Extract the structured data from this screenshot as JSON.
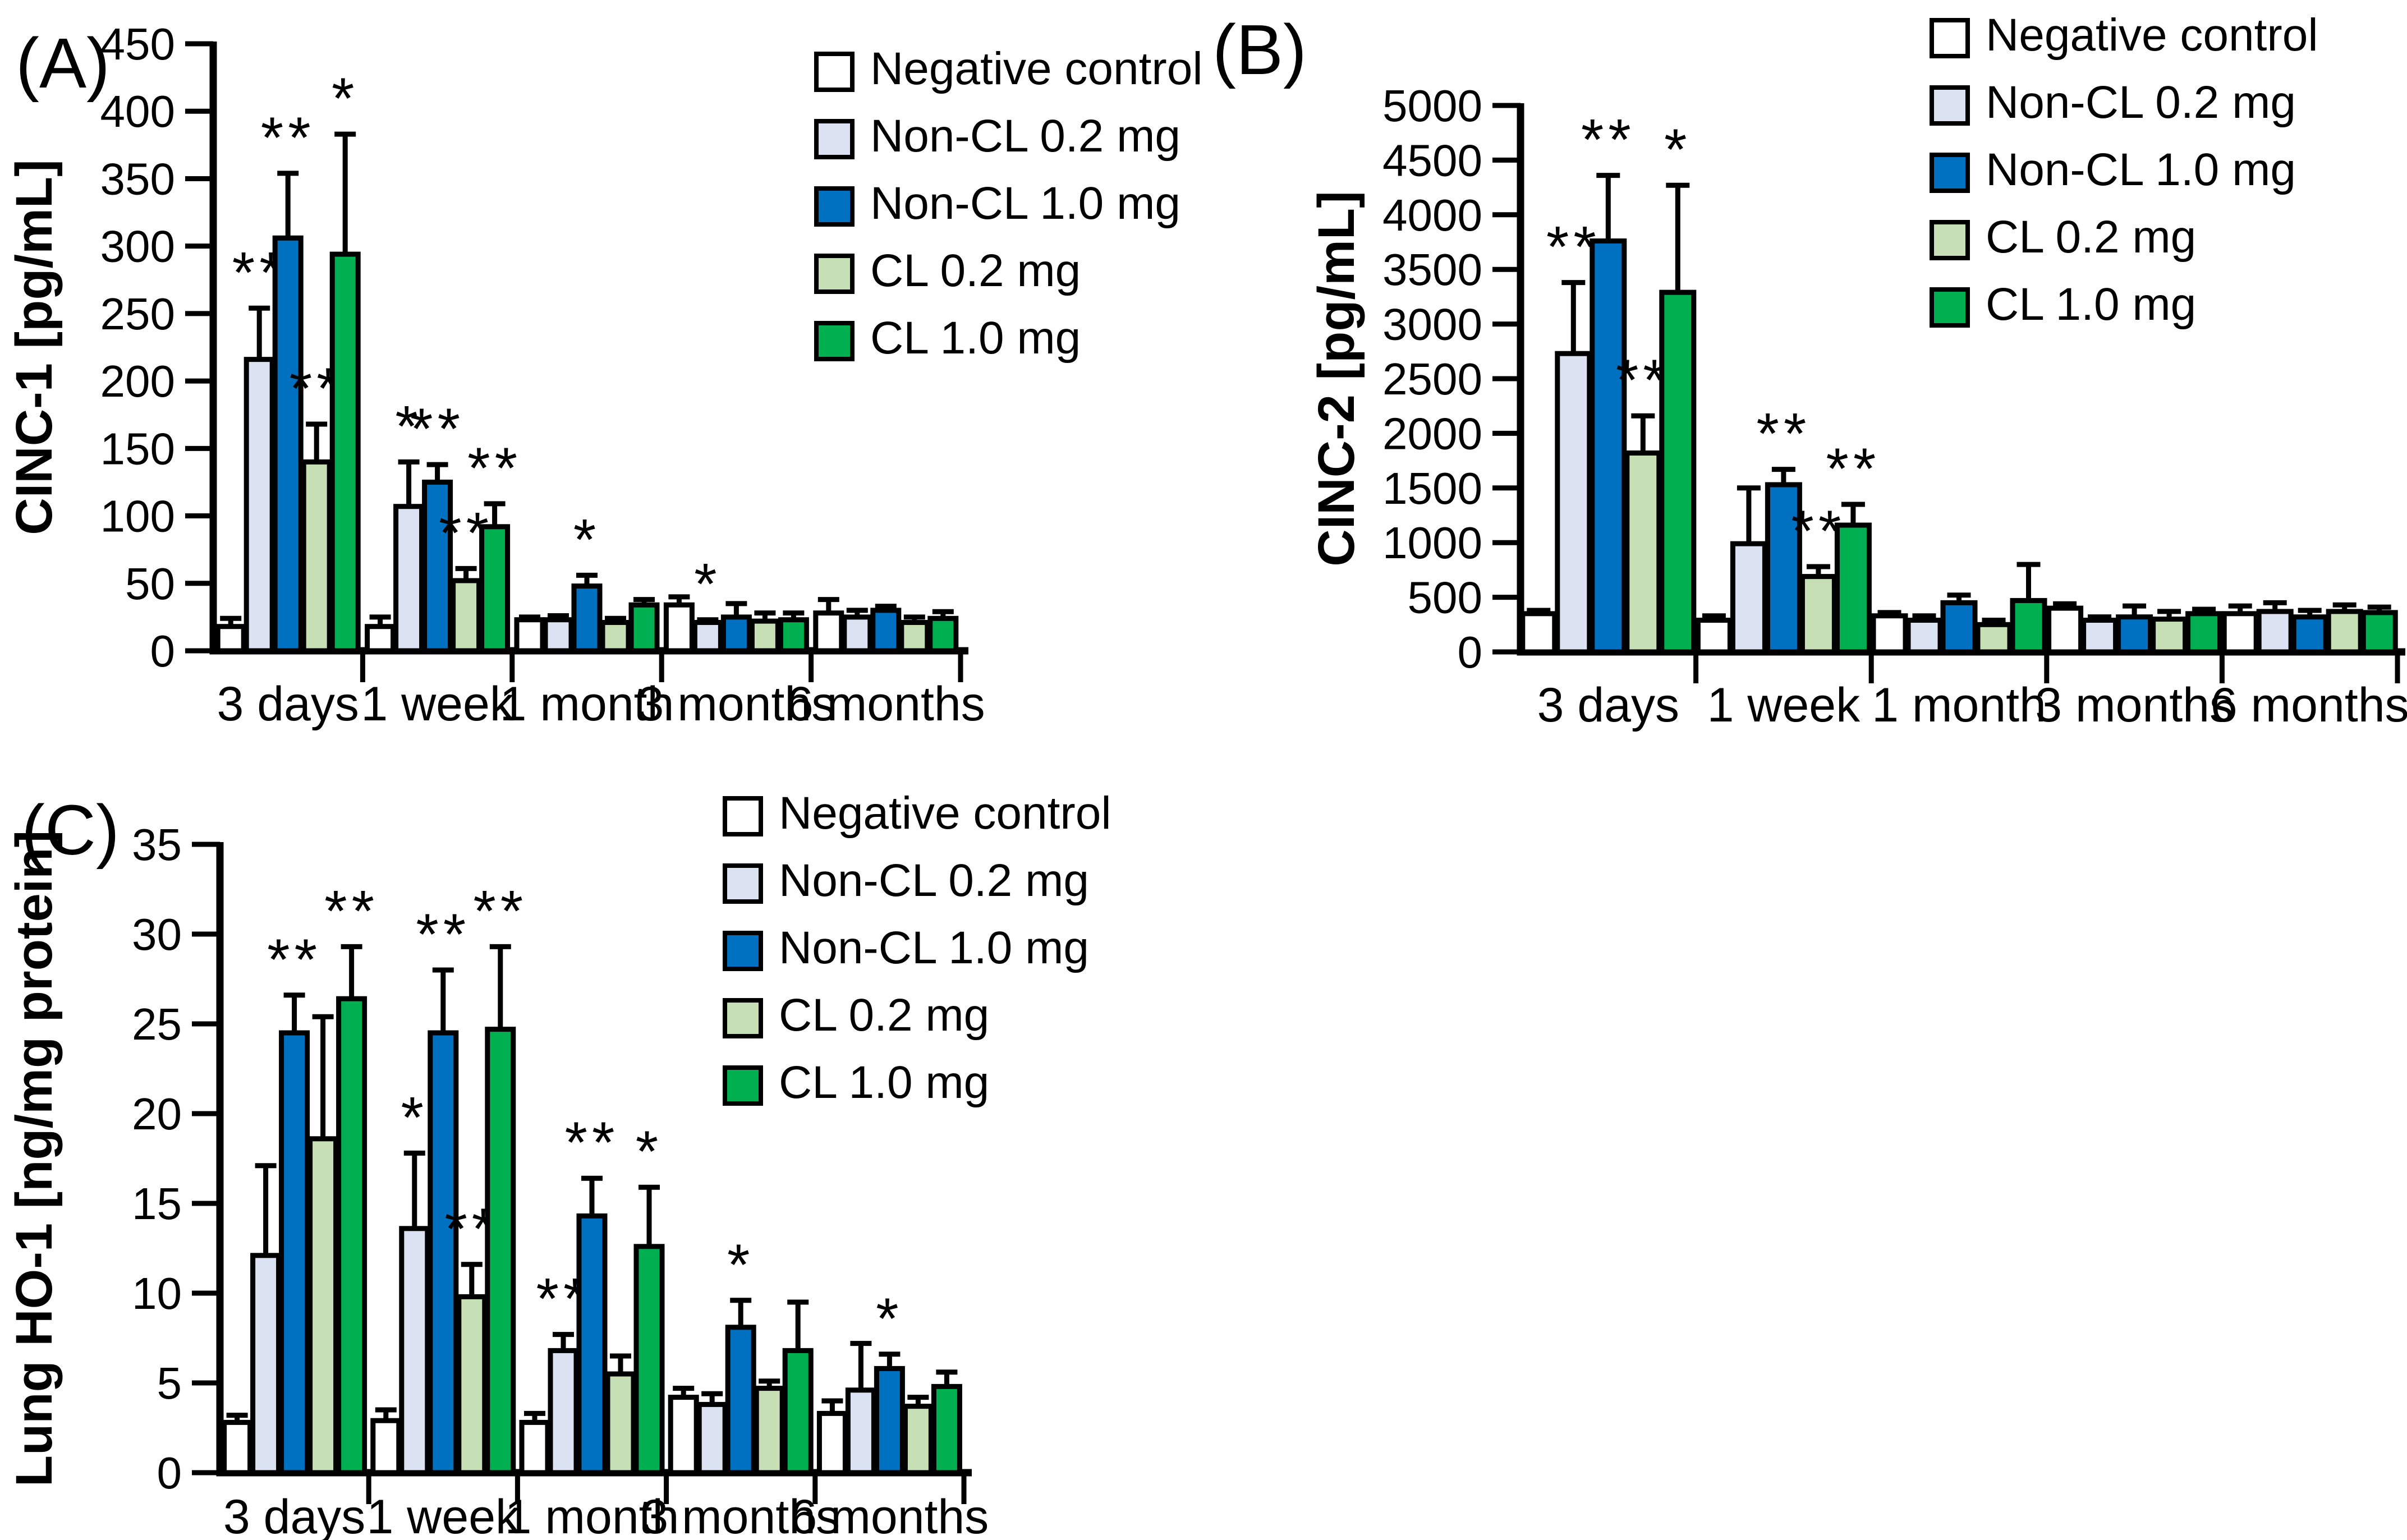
{
  "figure": {
    "background": "#FFFFFF",
    "significance_symbols": {
      "single": "*",
      "double": "**"
    }
  },
  "legend_items": [
    {
      "name": "Negative control",
      "color": "#FFFFFF"
    },
    {
      "name": "Non-CL 0.2 mg",
      "color": "#DBE3F3"
    },
    {
      "name": "Non-CL 1.0 mg",
      "color": "#0070C0"
    },
    {
      "name": "CL 0.2 mg",
      "color": "#C6DFB4"
    },
    {
      "name": "CL 1.0 mg",
      "color": "#00B050"
    }
  ],
  "chart_data": [
    {
      "panel": "(A)",
      "type": "bar",
      "title": "",
      "xlabel": "",
      "ylabel": "CINC-1 [pg/mL]",
      "ylim": [
        0,
        450
      ],
      "ystep": 50,
      "grid": false,
      "legend_position": "top-right-inside",
      "error_bars": "upper-sd",
      "categories": [
        "3 days",
        "1 week",
        "1 month",
        "3 months",
        "6 months"
      ],
      "series": [
        {
          "name": "Negative control",
          "color": "#FFFFFF",
          "values": [
            18,
            18,
            23,
            34,
            28
          ],
          "errors": [
            6,
            7,
            2,
            6,
            10
          ],
          "sig": [
            "",
            "",
            "",
            "",
            ""
          ]
        },
        {
          "name": "Non-CL 0.2 mg",
          "color": "#DBE3F3",
          "values": [
            216,
            107,
            23,
            21,
            25
          ],
          "errors": [
            38,
            33,
            3,
            2,
            5
          ],
          "sig": [
            "**",
            "*",
            "",
            "*",
            ""
          ]
        },
        {
          "name": "Non-CL 1.0 mg",
          "color": "#0070C0",
          "values": [
            306,
            125,
            48,
            25,
            30
          ],
          "errors": [
            48,
            13,
            8,
            10,
            3
          ],
          "sig": [
            "**",
            "**",
            "*",
            "",
            ""
          ]
        },
        {
          "name": "CL 0.2 mg",
          "color": "#C6DFB4",
          "values": [
            140,
            52,
            21,
            22,
            21
          ],
          "errors": [
            28,
            9,
            3,
            6,
            4
          ],
          "sig": [
            "**",
            "**",
            "",
            "",
            ""
          ]
        },
        {
          "name": "CL 1.0 mg",
          "color": "#00B050",
          "values": [
            294,
            92,
            34,
            23,
            24
          ],
          "errors": [
            89,
            17,
            4,
            5,
            5
          ],
          "sig": [
            "*",
            "**",
            "",
            "",
            ""
          ]
        }
      ]
    },
    {
      "panel": "(B)",
      "type": "bar",
      "title": "",
      "xlabel": "",
      "ylabel": "CINC-2 [pg/mL]",
      "ylim": [
        0,
        5000
      ],
      "ystep": 500,
      "grid": false,
      "legend_position": "top-right-inside",
      "error_bars": "upper-sd",
      "categories": [
        "3 days",
        "1 week",
        "1 month",
        "3 months",
        "6 months"
      ],
      "series": [
        {
          "name": "Negative control",
          "color": "#FFFFFF",
          "values": [
            350,
            290,
            330,
            400,
            350
          ],
          "errors": [
            30,
            40,
            30,
            40,
            70
          ],
          "sig": [
            "",
            "",
            "",
            "",
            ""
          ]
        },
        {
          "name": "Non-CL 0.2 mg",
          "color": "#DBE3F3",
          "values": [
            2730,
            990,
            290,
            290,
            370
          ],
          "errors": [
            650,
            510,
            40,
            30,
            80
          ],
          "sig": [
            "**",
            "",
            "",
            "",
            ""
          ]
        },
        {
          "name": "Non-CL 1.0 mg",
          "color": "#0070C0",
          "values": [
            3760,
            1530,
            450,
            320,
            320
          ],
          "errors": [
            600,
            140,
            70,
            100,
            60
          ],
          "sig": [
            "**",
            "**",
            "",
            "",
            ""
          ]
        },
        {
          "name": "CL 0.2 mg",
          "color": "#C6DFB4",
          "values": [
            1820,
            690,
            250,
            300,
            370
          ],
          "errors": [
            340,
            90,
            40,
            70,
            60
          ],
          "sig": [
            "**",
            "**",
            "",
            "",
            ""
          ]
        },
        {
          "name": "CL 1.0 mg",
          "color": "#00B050",
          "values": [
            3290,
            1160,
            470,
            350,
            360
          ],
          "errors": [
            980,
            190,
            330,
            40,
            50
          ],
          "sig": [
            "*",
            "**",
            "",
            "",
            ""
          ]
        }
      ]
    },
    {
      "panel": "(C)",
      "type": "bar",
      "title": "",
      "xlabel": "",
      "ylabel": "Lung HO-1 [ng/mg protein]",
      "ylim": [
        0,
        35
      ],
      "ystep": 5,
      "grid": false,
      "legend_position": "top-right-inside",
      "error_bars": "upper-sd",
      "categories": [
        "3 days",
        "1 week",
        "1 month",
        "3 months",
        "6 months"
      ],
      "series": [
        {
          "name": "Negative control",
          "color": "#FFFFFF",
          "values": [
            2.8,
            2.9,
            2.8,
            4.2,
            3.3
          ],
          "errors": [
            0.4,
            0.6,
            0.5,
            0.5,
            0.7
          ],
          "sig": [
            "",
            "",
            "",
            "",
            ""
          ]
        },
        {
          "name": "Non-CL 0.2 mg",
          "color": "#DBE3F3",
          "values": [
            12.1,
            13.6,
            6.8,
            3.8,
            4.6
          ],
          "errors": [
            5.0,
            4.2,
            0.9,
            0.6,
            2.6
          ],
          "sig": [
            "",
            "*",
            "**",
            "",
            ""
          ]
        },
        {
          "name": "Non-CL 1.0 mg",
          "color": "#0070C0",
          "values": [
            24.5,
            24.5,
            14.3,
            8.1,
            5.8
          ],
          "errors": [
            2.1,
            3.5,
            2.1,
            1.5,
            0.8
          ],
          "sig": [
            "**",
            "**",
            "**",
            "*",
            "*"
          ]
        },
        {
          "name": "CL 0.2 mg",
          "color": "#C6DFB4",
          "values": [
            18.6,
            9.8,
            5.5,
            4.7,
            3.7
          ],
          "errors": [
            6.8,
            1.8,
            1.0,
            0.4,
            0.5
          ],
          "sig": [
            "",
            "**",
            "",
            "",
            ""
          ]
        },
        {
          "name": "CL 1.0 mg",
          "color": "#00B050",
          "values": [
            26.4,
            24.7,
            12.6,
            6.8,
            4.8
          ],
          "errors": [
            2.9,
            4.6,
            3.3,
            2.7,
            0.8
          ],
          "sig": [
            "**",
            "**",
            "*",
            "",
            ""
          ]
        }
      ]
    }
  ]
}
